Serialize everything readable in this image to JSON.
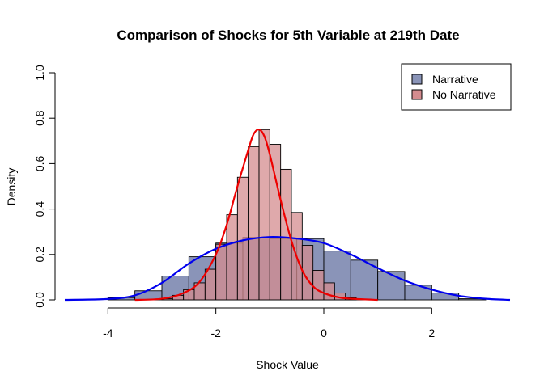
{
  "chart_data": {
    "type": "histogram",
    "title": "Comparison of Shocks for 5th Variable at 219th Date",
    "xlabel": "Shock Value",
    "ylabel": "Density",
    "xlim": [
      -4.8,
      3.45
    ],
    "ylim": [
      0,
      1.0
    ],
    "x_ticks": [
      -4,
      -2,
      0,
      2
    ],
    "y_ticks": [
      0.0,
      0.2,
      0.4,
      0.6,
      0.8,
      1.0
    ],
    "grid": false,
    "legend_position": "top-right",
    "series": [
      {
        "name": "Narrative",
        "fill_color": "#8a94b8",
        "curve_color": "#0000ee",
        "bins": [
          {
            "x0": -4.0,
            "x1": -3.5,
            "density": 0.01
          },
          {
            "x0": -3.5,
            "x1": -3.0,
            "density": 0.04
          },
          {
            "x0": -3.0,
            "x1": -2.5,
            "density": 0.105
          },
          {
            "x0": -2.5,
            "x1": -2.0,
            "density": 0.19
          },
          {
            "x0": -2.0,
            "x1": -1.5,
            "density": 0.25
          },
          {
            "x0": -1.5,
            "x1": -1.0,
            "density": 0.275
          },
          {
            "x0": -1.0,
            "x1": -0.5,
            "density": 0.27
          },
          {
            "x0": -0.5,
            "x1": 0.0,
            "density": 0.27
          },
          {
            "x0": 0.0,
            "x1": 0.5,
            "density": 0.215
          },
          {
            "x0": 0.5,
            "x1": 1.0,
            "density": 0.175
          },
          {
            "x0": 1.0,
            "x1": 1.5,
            "density": 0.125
          },
          {
            "x0": 1.5,
            "x1": 2.0,
            "density": 0.065
          },
          {
            "x0": 2.0,
            "x1": 2.5,
            "density": 0.03
          },
          {
            "x0": 2.5,
            "x1": 3.0,
            "density": 0.005
          }
        ],
        "density_curve": {
          "x": [
            -4.8,
            -4.0,
            -3.5,
            -3.0,
            -2.5,
            -2.0,
            -1.5,
            -1.0,
            -0.5,
            0.0,
            0.5,
            1.0,
            1.5,
            2.0,
            2.5,
            3.0,
            3.45
          ],
          "y": [
            0.0,
            0.004,
            0.02,
            0.075,
            0.16,
            0.225,
            0.262,
            0.277,
            0.27,
            0.25,
            0.2,
            0.14,
            0.085,
            0.045,
            0.018,
            0.005,
            0.0
          ]
        }
      },
      {
        "name": "No Narrative",
        "fill_color": "#d48c8f",
        "curve_color": "#ee0000",
        "bins": [
          {
            "x0": -3.0,
            "x1": -2.8,
            "density": 0.005
          },
          {
            "x0": -2.8,
            "x1": -2.6,
            "density": 0.02
          },
          {
            "x0": -2.6,
            "x1": -2.4,
            "density": 0.045
          },
          {
            "x0": -2.4,
            "x1": -2.2,
            "density": 0.075
          },
          {
            "x0": -2.2,
            "x1": -2.0,
            "density": 0.135
          },
          {
            "x0": -2.0,
            "x1": -1.8,
            "density": 0.245
          },
          {
            "x0": -1.8,
            "x1": -1.6,
            "density": 0.375
          },
          {
            "x0": -1.6,
            "x1": -1.4,
            "density": 0.54
          },
          {
            "x0": -1.4,
            "x1": -1.2,
            "density": 0.675
          },
          {
            "x0": -1.2,
            "x1": -1.0,
            "density": 0.75
          },
          {
            "x0": -1.0,
            "x1": -0.8,
            "density": 0.685
          },
          {
            "x0": -0.8,
            "x1": -0.6,
            "density": 0.575
          },
          {
            "x0": -0.6,
            "x1": -0.4,
            "density": 0.385
          },
          {
            "x0": -0.4,
            "x1": -0.2,
            "density": 0.24
          },
          {
            "x0": -0.2,
            "x1": 0.0,
            "density": 0.13
          },
          {
            "x0": 0.0,
            "x1": 0.2,
            "density": 0.075
          },
          {
            "x0": 0.2,
            "x1": 0.4,
            "density": 0.03
          },
          {
            "x0": 0.4,
            "x1": 0.6,
            "density": 0.01
          }
        ],
        "density_curve": {
          "x": [
            -3.5,
            -3.0,
            -2.6,
            -2.3,
            -2.0,
            -1.8,
            -1.6,
            -1.4,
            -1.3,
            -1.2,
            -1.1,
            -1.0,
            -0.8,
            -0.6,
            -0.4,
            -0.2,
            0.0,
            0.3,
            0.6,
            1.0
          ],
          "y": [
            0.0,
            0.005,
            0.03,
            0.08,
            0.2,
            0.33,
            0.5,
            0.66,
            0.73,
            0.75,
            0.72,
            0.64,
            0.44,
            0.26,
            0.13,
            0.06,
            0.03,
            0.01,
            0.004,
            0.0
          ]
        }
      }
    ]
  }
}
